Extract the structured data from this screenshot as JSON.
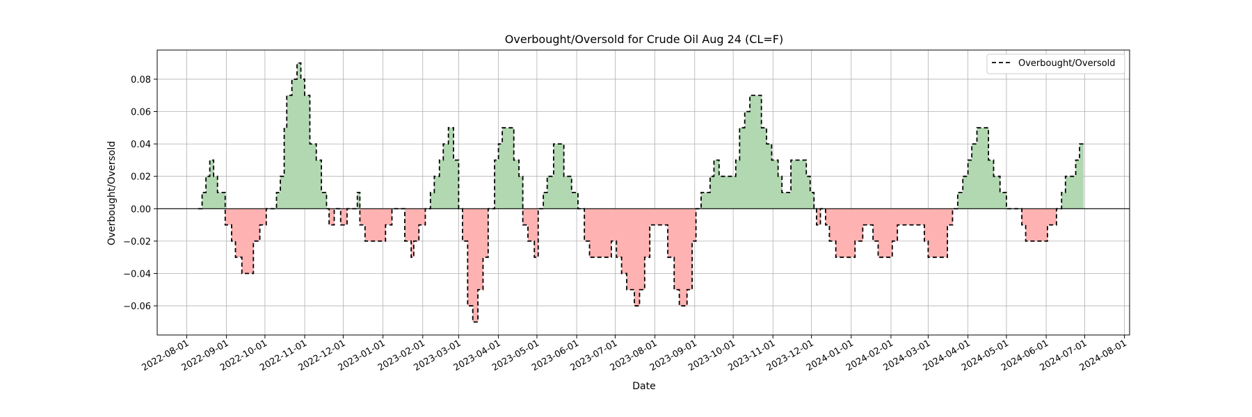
{
  "chart_data": {
    "type": "area",
    "title": "Overbought/Oversold for Crude Oil Aug 24 (CL=F)",
    "xlabel": "Date",
    "ylabel": "Overbought/Oversold",
    "x_ticks": [
      "2022-08-01",
      "2022-09-01",
      "2022-10-01",
      "2022-11-01",
      "2022-12-01",
      "2023-01-01",
      "2023-02-01",
      "2023-03-01",
      "2023-04-01",
      "2023-05-01",
      "2023-06-01",
      "2023-07-01",
      "2023-08-01",
      "2023-09-01",
      "2023-10-01",
      "2023-11-01",
      "2023-12-01",
      "2024-01-01",
      "2024-02-01",
      "2024-03-01",
      "2024-04-01",
      "2024-05-01",
      "2024-06-01",
      "2024-07-01",
      "2024-08-01"
    ],
    "y_ticks": [
      "−0.06",
      "−0.04",
      "−0.02",
      "0.00",
      "0.02",
      "0.04",
      "0.06",
      "0.08"
    ],
    "xlim": [
      "2022-07-09",
      "2024-08-05"
    ],
    "ylim": [
      -0.078,
      0.098
    ],
    "grid": true,
    "legend_position": "top-right",
    "series": [
      {
        "name": "Overbought/Oversold",
        "line_style": "dashed",
        "color": "#000000",
        "positive_fill": "#b2d8b2",
        "negative_fill": "#ffb2b2",
        "points": [
          [
            "2022-08-10",
            0.0
          ],
          [
            "2022-08-13",
            0.01
          ],
          [
            "2022-08-16",
            0.02
          ],
          [
            "2022-08-19",
            0.03
          ],
          [
            "2022-08-22",
            0.02
          ],
          [
            "2022-08-25",
            0.01
          ],
          [
            "2022-08-30",
            0.01
          ],
          [
            "2022-08-31",
            -0.01
          ],
          [
            "2022-09-05",
            -0.02
          ],
          [
            "2022-09-08",
            -0.03
          ],
          [
            "2022-09-13",
            -0.04
          ],
          [
            "2022-09-20",
            -0.04
          ],
          [
            "2022-09-22",
            -0.02
          ],
          [
            "2022-09-27",
            -0.01
          ],
          [
            "2022-10-02",
            0.0
          ],
          [
            "2022-10-10",
            0.01
          ],
          [
            "2022-10-13",
            0.02
          ],
          [
            "2022-10-16",
            0.05
          ],
          [
            "2022-10-18",
            0.07
          ],
          [
            "2022-10-22",
            0.08
          ],
          [
            "2022-10-26",
            0.09
          ],
          [
            "2022-10-29",
            0.08
          ],
          [
            "2022-11-01",
            0.07
          ],
          [
            "2022-11-05",
            0.04
          ],
          [
            "2022-11-10",
            0.03
          ],
          [
            "2022-11-14",
            0.01
          ],
          [
            "2022-11-18",
            0.0
          ],
          [
            "2022-11-20",
            -0.01
          ],
          [
            "2022-11-24",
            0.0
          ],
          [
            "2022-11-29",
            -0.01
          ],
          [
            "2022-12-04",
            0.0
          ],
          [
            "2022-12-11",
            0.0
          ],
          [
            "2022-12-12",
            0.01
          ],
          [
            "2022-12-14",
            -0.01
          ],
          [
            "2022-12-18",
            -0.02
          ],
          [
            "2022-12-30",
            -0.02
          ],
          [
            "2023-01-03",
            -0.01
          ],
          [
            "2023-01-08",
            0.0
          ],
          [
            "2023-01-15",
            0.0
          ],
          [
            "2023-01-18",
            -0.02
          ],
          [
            "2023-01-22",
            -0.02
          ],
          [
            "2023-01-23",
            -0.03
          ],
          [
            "2023-01-25",
            -0.02
          ],
          [
            "2023-01-29",
            -0.01
          ],
          [
            "2023-02-03",
            0.0
          ],
          [
            "2023-02-07",
            0.01
          ],
          [
            "2023-02-10",
            0.02
          ],
          [
            "2023-02-14",
            0.03
          ],
          [
            "2023-02-17",
            0.04
          ],
          [
            "2023-02-21",
            0.05
          ],
          [
            "2023-02-25",
            0.03
          ],
          [
            "2023-03-01",
            0.0
          ],
          [
            "2023-03-04",
            -0.02
          ],
          [
            "2023-03-08",
            -0.06
          ],
          [
            "2023-03-12",
            -0.07
          ],
          [
            "2023-03-16",
            -0.05
          ],
          [
            "2023-03-20",
            -0.03
          ],
          [
            "2023-03-24",
            0.0
          ],
          [
            "2023-03-29",
            0.03
          ],
          [
            "2023-04-01",
            0.04
          ],
          [
            "2023-04-04",
            0.05
          ],
          [
            "2023-04-10",
            0.05
          ],
          [
            "2023-04-13",
            0.03
          ],
          [
            "2023-04-17",
            0.02
          ],
          [
            "2023-04-20",
            -0.01
          ],
          [
            "2023-04-24",
            -0.02
          ],
          [
            "2023-04-29",
            -0.03
          ],
          [
            "2023-05-02",
            0.0
          ],
          [
            "2023-05-06",
            0.01
          ],
          [
            "2023-05-09",
            0.02
          ],
          [
            "2023-05-14",
            0.04
          ],
          [
            "2023-05-19",
            0.04
          ],
          [
            "2023-05-22",
            0.02
          ],
          [
            "2023-05-28",
            0.01
          ],
          [
            "2023-06-02",
            0.0
          ],
          [
            "2023-06-07",
            -0.02
          ],
          [
            "2023-06-11",
            -0.03
          ],
          [
            "2023-06-24",
            -0.03
          ],
          [
            "2023-06-28",
            -0.02
          ],
          [
            "2023-07-02",
            -0.03
          ],
          [
            "2023-07-06",
            -0.04
          ],
          [
            "2023-07-10",
            -0.05
          ],
          [
            "2023-07-16",
            -0.06
          ],
          [
            "2023-07-20",
            -0.05
          ],
          [
            "2023-07-24",
            -0.03
          ],
          [
            "2023-07-28",
            -0.01
          ],
          [
            "2023-08-07",
            -0.01
          ],
          [
            "2023-08-11",
            -0.03
          ],
          [
            "2023-08-16",
            -0.05
          ],
          [
            "2023-08-20",
            -0.06
          ],
          [
            "2023-08-26",
            -0.05
          ],
          [
            "2023-08-30",
            -0.02
          ],
          [
            "2023-09-02",
            0.0
          ],
          [
            "2023-09-06",
            0.01
          ],
          [
            "2023-09-13",
            0.02
          ],
          [
            "2023-09-16",
            0.03
          ],
          [
            "2023-09-20",
            0.02
          ],
          [
            "2023-09-29",
            0.02
          ],
          [
            "2023-10-03",
            0.03
          ],
          [
            "2023-10-06",
            0.05
          ],
          [
            "2023-10-10",
            0.06
          ],
          [
            "2023-10-14",
            0.07
          ],
          [
            "2023-10-20",
            0.07
          ],
          [
            "2023-10-23",
            0.05
          ],
          [
            "2023-10-27",
            0.04
          ],
          [
            "2023-10-31",
            0.03
          ],
          [
            "2023-11-05",
            0.02
          ],
          [
            "2023-11-08",
            0.01
          ],
          [
            "2023-11-12",
            0.01
          ],
          [
            "2023-11-15",
            0.03
          ],
          [
            "2023-11-23",
            0.03
          ],
          [
            "2023-11-27",
            0.02
          ],
          [
            "2023-11-30",
            0.01
          ],
          [
            "2023-12-03",
            0.0
          ],
          [
            "2023-12-05",
            -0.01
          ],
          [
            "2023-12-08",
            0.0
          ],
          [
            "2023-12-12",
            -0.01
          ],
          [
            "2023-12-15",
            -0.02
          ],
          [
            "2023-12-20",
            -0.03
          ],
          [
            "2024-01-01",
            -0.03
          ],
          [
            "2024-01-04",
            -0.02
          ],
          [
            "2024-01-10",
            -0.01
          ],
          [
            "2024-01-18",
            -0.02
          ],
          [
            "2024-01-22",
            -0.03
          ],
          [
            "2024-01-29",
            -0.03
          ],
          [
            "2024-02-02",
            -0.02
          ],
          [
            "2024-02-06",
            -0.01
          ],
          [
            "2024-02-23",
            -0.01
          ],
          [
            "2024-02-27",
            -0.02
          ],
          [
            "2024-03-01",
            -0.03
          ],
          [
            "2024-03-12",
            -0.03
          ],
          [
            "2024-03-16",
            -0.01
          ],
          [
            "2024-03-20",
            0.0
          ],
          [
            "2024-03-24",
            0.01
          ],
          [
            "2024-03-28",
            0.02
          ],
          [
            "2024-04-01",
            0.03
          ],
          [
            "2024-04-04",
            0.04
          ],
          [
            "2024-04-08",
            0.05
          ],
          [
            "2024-04-14",
            0.05
          ],
          [
            "2024-04-17",
            0.03
          ],
          [
            "2024-04-21",
            0.02
          ],
          [
            "2024-04-26",
            0.01
          ],
          [
            "2024-05-01",
            0.0
          ],
          [
            "2024-05-10",
            0.0
          ],
          [
            "2024-05-13",
            -0.01
          ],
          [
            "2024-05-16",
            -0.02
          ],
          [
            "2024-05-29",
            -0.02
          ],
          [
            "2024-06-02",
            -0.01
          ],
          [
            "2024-06-09",
            0.0
          ],
          [
            "2024-06-13",
            0.01
          ],
          [
            "2024-06-16",
            0.02
          ],
          [
            "2024-06-21",
            0.02
          ],
          [
            "2024-06-24",
            0.03
          ],
          [
            "2024-06-27",
            0.04
          ],
          [
            "2024-06-30",
            0.04
          ]
        ]
      }
    ]
  }
}
